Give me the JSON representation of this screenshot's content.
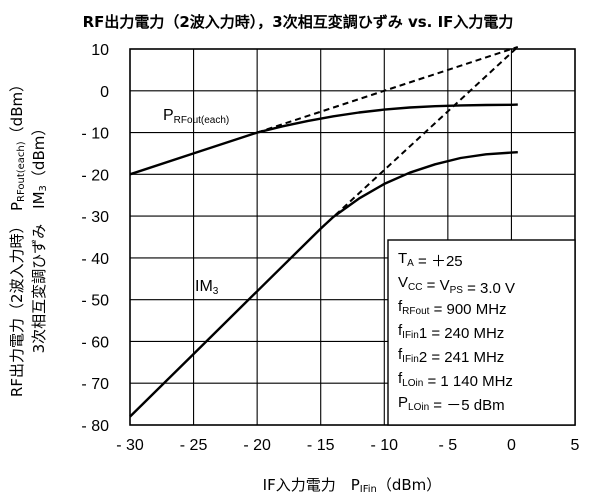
{
  "chart_data": {
    "type": "line",
    "title": "RF出力電力（2波入力時），3次相互変調ひずみ vs. IF入力電力",
    "xlabel": "IF入力電力　PIFin（dBm）",
    "ylabel": "RF出力電力（2波入力時）　PRFout(each)（dBm）",
    "ylabel2": "3次相互変調ひずみ　IM3（dBm）",
    "xlim": [
      -30,
      5
    ],
    "ylim": [
      -80,
      10
    ],
    "xticks": [
      -30,
      -25,
      -20,
      -15,
      -10,
      -5,
      0,
      5
    ],
    "yticks": [
      10,
      0,
      -10,
      -20,
      -30,
      -40,
      -50,
      -60,
      -70,
      -80
    ],
    "xtick_labels": [
      "- 30",
      "- 25",
      "- 20",
      "- 15",
      "- 10",
      "- 5",
      "0",
      "5"
    ],
    "ytick_labels": [
      "10",
      "0",
      "- 10",
      "- 20",
      "- 30",
      "- 40",
      "- 50",
      "- 60",
      "- 70",
      "- 80"
    ],
    "grid": true,
    "series": [
      {
        "name": "PRFout(each)",
        "style": "solid",
        "x": [
          -30,
          -25,
          -20,
          -18,
          -16,
          -14,
          -12,
          -10,
          -8,
          -6,
          -4,
          -2,
          0,
          0.5
        ],
        "y": [
          -20,
          -15,
          -10,
          -8.5,
          -7.2,
          -6.1,
          -5.2,
          -4.5,
          -4.0,
          -3.7,
          -3.5,
          -3.4,
          -3.35,
          -3.3
        ]
      },
      {
        "name": "IM3",
        "style": "solid",
        "x": [
          -30,
          -25,
          -20,
          -15,
          -14,
          -12,
          -10,
          -8,
          -6,
          -4,
          -2,
          0,
          0.5
        ],
        "y": [
          -78,
          -63,
          -48,
          -33,
          -30.2,
          -25.8,
          -22.3,
          -19.6,
          -17.6,
          -16.1,
          -15.2,
          -14.8,
          -14.7
        ]
      },
      {
        "name": "",
        "style": "dashed",
        "x": [
          -20,
          0.5
        ],
        "y": [
          -10,
          10.5
        ]
      },
      {
        "name": "",
        "style": "dashed",
        "x": [
          -15,
          0.5
        ],
        "y": [
          -33,
          10.5
        ]
      }
    ],
    "labels": {
      "prf": {
        "main": "P",
        "sub": "RFout(each)"
      },
      "im3": {
        "main": "IM",
        "sub": "3"
      }
    },
    "conditions": [
      {
        "a": "T",
        "as": "A",
        "b": " = ＋25"
      },
      {
        "a": "V",
        "as": "CC",
        "b": " = V",
        "bs": "PS",
        "c": " = 3.0 V"
      },
      {
        "a": "f",
        "as": "RFout",
        "b": " = 900 MHz"
      },
      {
        "a": "f",
        "as": "IFin",
        "b": "1 = 240 MHz"
      },
      {
        "a": "f",
        "as": "IFin",
        "b": "2 = 241 MHz"
      },
      {
        "a": "f",
        "as": "LOin",
        "b": " = 1 140 MHz"
      },
      {
        "a": "P",
        "as": "LOin",
        "b": " = －5 dBm"
      }
    ],
    "axis_label_parts": {
      "x": {
        "a": "IF入力電力　P",
        "as": "IFin",
        "b": "（dBm）"
      },
      "y1": {
        "a": "RF出力電力（2波入力時）　P",
        "as": "RFout(each)",
        "b": "（dBm）"
      },
      "y2": {
        "a": "3次相互変調ひずみ　IM",
        "as": "3",
        "b": "（dBm）"
      }
    },
    "colors": {
      "line": "#000000",
      "grid": "#000000",
      "background": "#ffffff"
    }
  }
}
